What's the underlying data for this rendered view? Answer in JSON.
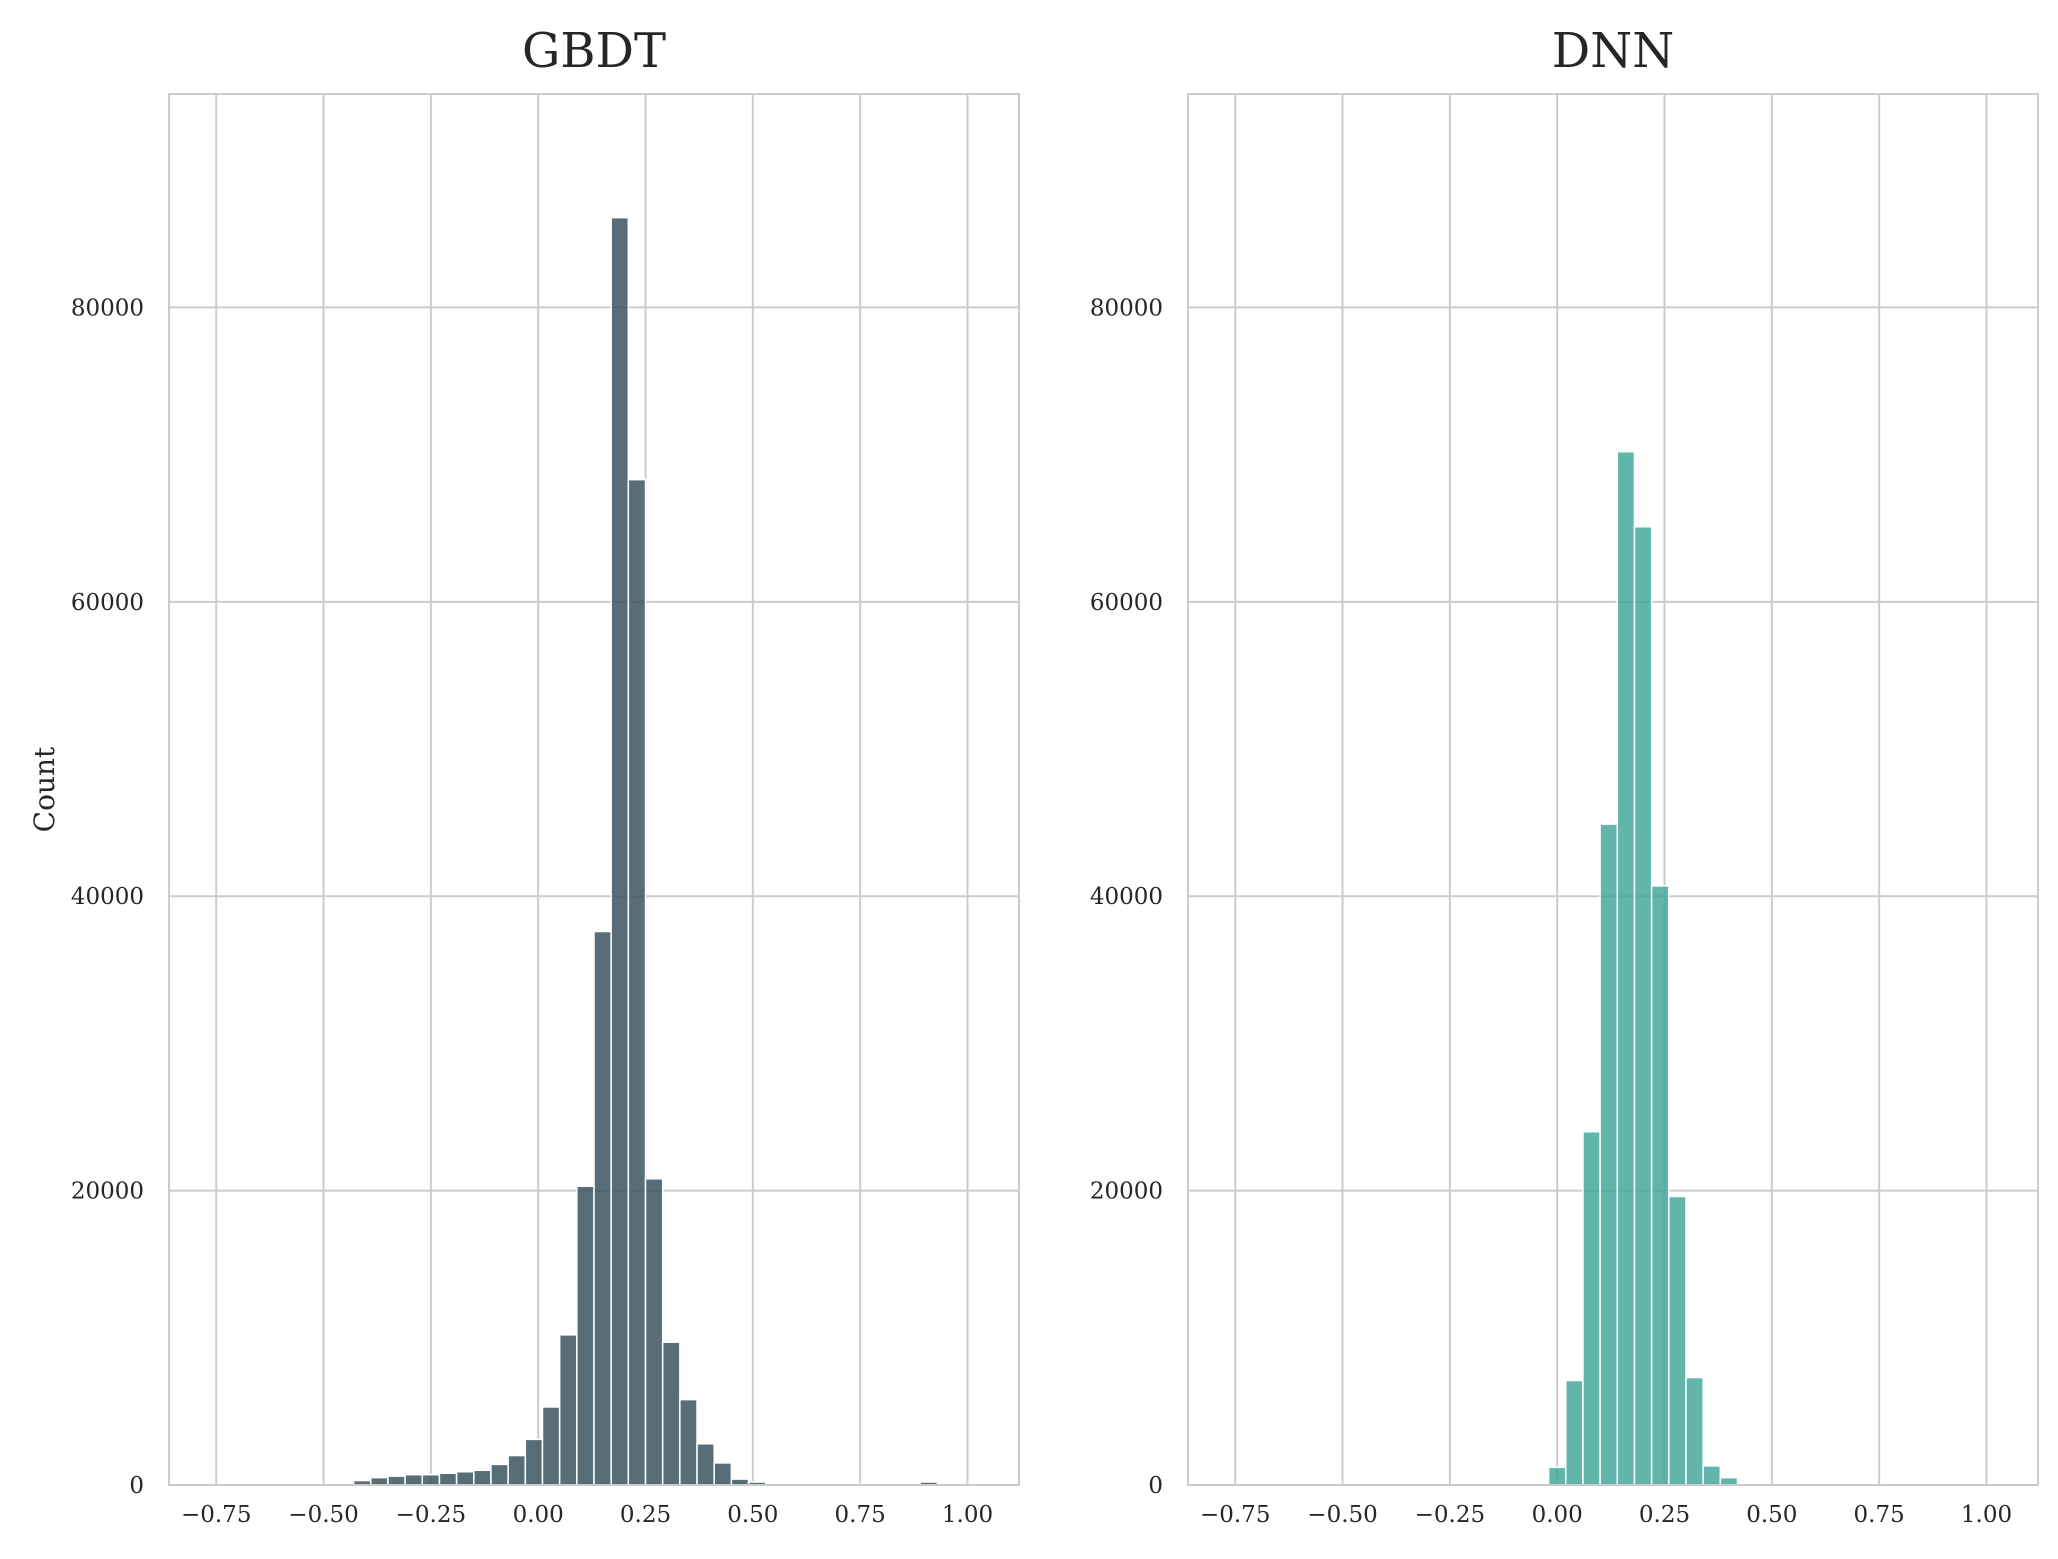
{
  "chart_data": [
    {
      "type": "bar",
      "title": "GBDT",
      "xlabel": "",
      "ylabel": "Count",
      "color": "#3c5461",
      "opacity": 0.85,
      "grid": true,
      "xlim": [
        -0.86,
        1.12
      ],
      "ylim": [
        0,
        94500
      ],
      "xticks": [
        -0.75,
        -0.5,
        -0.25,
        0.0,
        0.25,
        0.5,
        0.75,
        1.0
      ],
      "xtick_labels": [
        "−0.75",
        "−0.50",
        "−0.25",
        "0.00",
        "0.25",
        "0.50",
        "0.75",
        "1.00"
      ],
      "yticks": [
        0,
        20000,
        40000,
        60000,
        80000
      ],
      "ytick_labels": [
        "0",
        "20000",
        "40000",
        "60000",
        "80000"
      ],
      "bin_width": 0.04,
      "bin_edges_start": -0.43,
      "values": [
        300,
        500,
        600,
        700,
        700,
        800,
        900,
        1000,
        1400,
        2000,
        3100,
        5300,
        10200,
        20300,
        37600,
        86100,
        68300,
        20800,
        9700,
        5800,
        2800,
        1500,
        400,
        200,
        100,
        50,
        50,
        50,
        50,
        50,
        50,
        50,
        50,
        200,
        50
      ]
    },
    {
      "type": "bar",
      "title": "DNN",
      "xlabel": "",
      "ylabel": "",
      "color": "#40a597",
      "opacity": 0.82,
      "grid": true,
      "xlim": [
        -0.86,
        1.12
      ],
      "ylim": [
        0,
        94500
      ],
      "xticks": [
        -0.75,
        -0.5,
        -0.25,
        0.0,
        0.25,
        0.5,
        0.75,
        1.0
      ],
      "xtick_labels": [
        "−0.75",
        "−0.50",
        "−0.25",
        "0.00",
        "0.25",
        "0.50",
        "0.75",
        "1.00"
      ],
      "yticks": [
        0,
        20000,
        40000,
        60000,
        80000
      ],
      "ytick_labels": [
        "0",
        "20000",
        "40000",
        "60000",
        "80000"
      ],
      "bin_width": 0.04,
      "bin_edges_start": -0.02,
      "values": [
        1200,
        7100,
        24000,
        44900,
        70200,
        65100,
        40700,
        19600,
        7300,
        1300,
        500
      ]
    }
  ]
}
